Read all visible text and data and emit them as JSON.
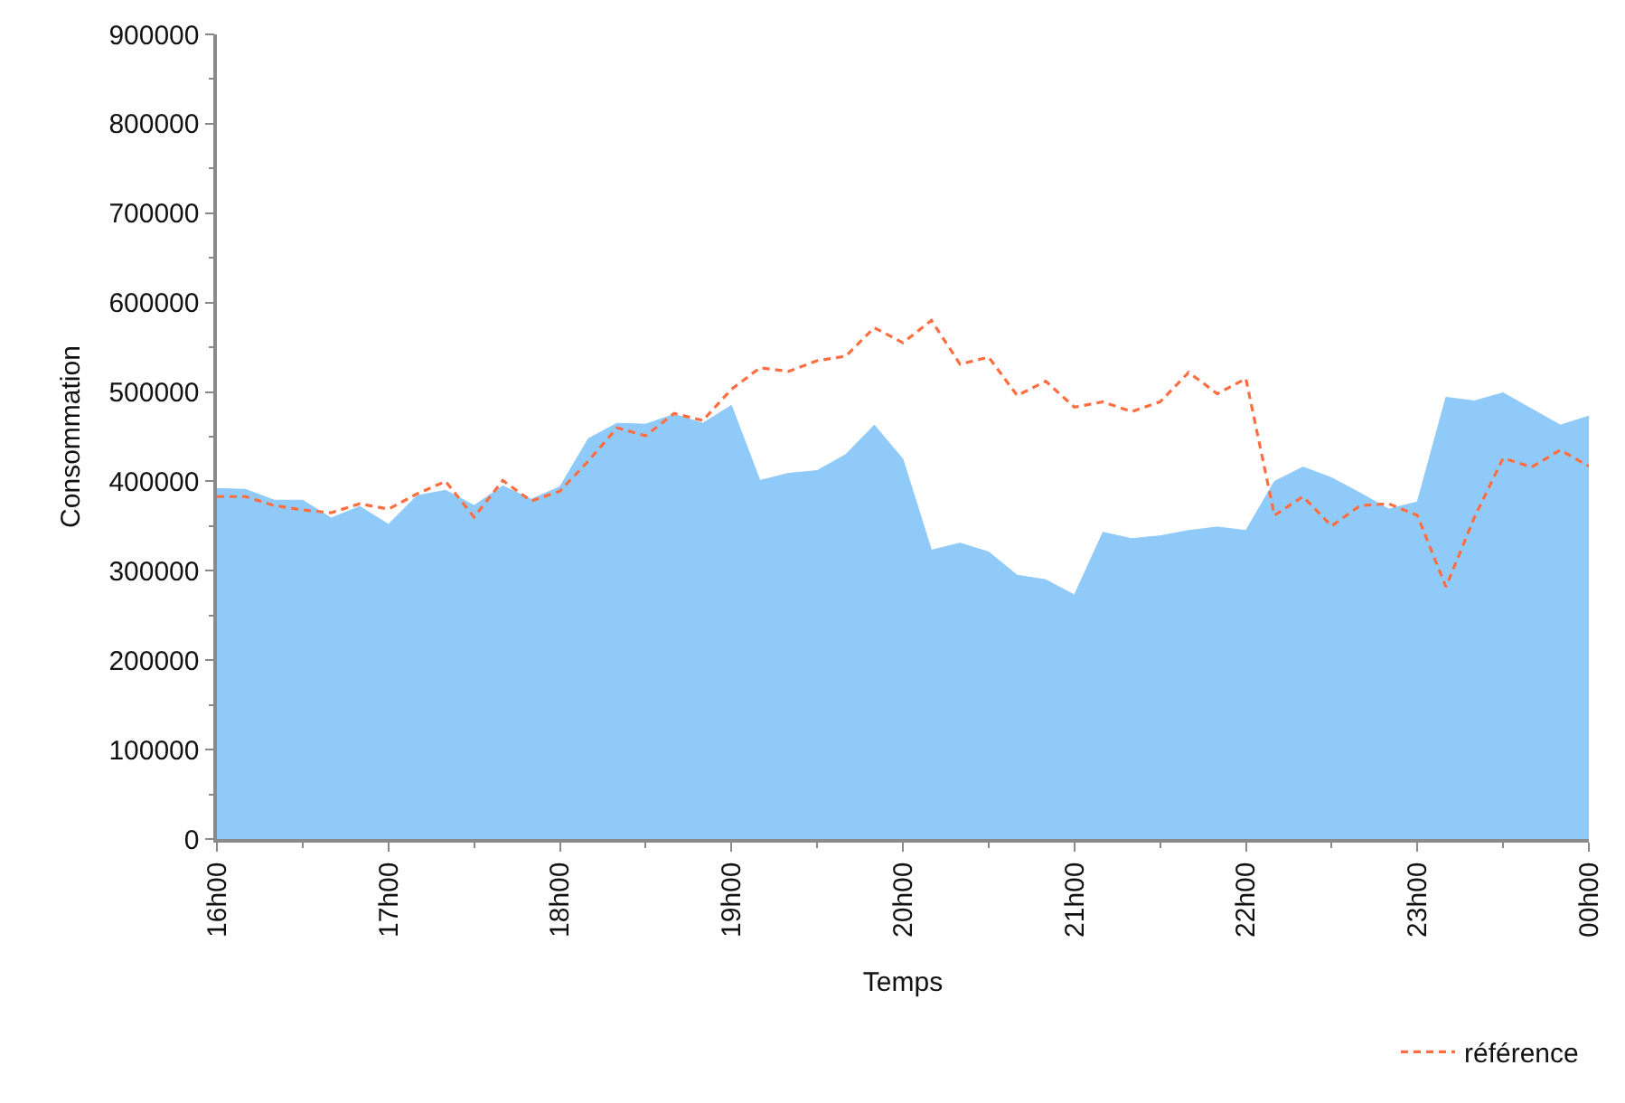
{
  "chart_data": {
    "type": "area",
    "xlabel": "Temps",
    "ylabel": "Consommation",
    "categories": [
      "16h00",
      null,
      null,
      null,
      null,
      null,
      "17h00",
      null,
      null,
      null,
      null,
      null,
      "18h00",
      null,
      null,
      null,
      null,
      null,
      "19h00",
      null,
      null,
      null,
      null,
      null,
      "20h00",
      null,
      null,
      null,
      null,
      null,
      "21h00",
      null,
      null,
      null,
      null,
      null,
      "22h00",
      null,
      null,
      null,
      null,
      null,
      "23h00",
      null,
      null,
      null,
      null,
      null,
      "00h00"
    ],
    "ylim": [
      0,
      900000
    ],
    "yticks": [
      0,
      {
        "value": 50000,
        "label": null
      },
      100000,
      {
        "value": 150000,
        "label": null
      },
      200000,
      {
        "value": 250000,
        "label": null
      },
      300000,
      {
        "value": 350000,
        "label": null
      },
      400000,
      {
        "value": 450000,
        "label": null
      },
      500000,
      {
        "value": 550000,
        "label": null
      },
      600000,
      {
        "value": 650000,
        "label": null
      },
      700000,
      {
        "value": 750000,
        "label": null
      },
      800000,
      {
        "value": 850000,
        "label": null
      },
      900000
    ],
    "series": [
      {
        "color": "#90caf9",
        "values": [
          392000,
          391000,
          379000,
          379000,
          359000,
          372000,
          352000,
          384000,
          390000,
          373000,
          395000,
          380000,
          394000,
          448000,
          465000,
          464000,
          475000,
          465000,
          485000,
          401000,
          409000,
          412000,
          430000,
          463000,
          425000,
          323000,
          331000,
          321000,
          295000,
          290000,
          273000,
          343000,
          336000,
          339000,
          345000,
          349000,
          345000,
          400000,
          416000,
          404000,
          387000,
          369000,
          377000,
          494000,
          490000,
          499000,
          481000,
          463000,
          473000
        ]
      },
      {
        "type": "line",
        "name": "référence",
        "color": "#ff6e40",
        "line_style": "dashed",
        "values": [
          383000,
          383000,
          373000,
          368000,
          365000,
          375000,
          369000,
          386000,
          400000,
          360000,
          401000,
          378000,
          389000,
          423000,
          460000,
          451000,
          476000,
          468000,
          503000,
          527000,
          523000,
          535000,
          540000,
          572000,
          555000,
          580000,
          531000,
          539000,
          496000,
          512000,
          483000,
          489000,
          478000,
          489000,
          522000,
          498000,
          515000,
          362000,
          383000,
          350000,
          373000,
          375000,
          362000,
          282000,
          360000,
          426000,
          416000,
          435000,
          417000
        ]
      }
    ],
    "legend": "bottom right"
  }
}
